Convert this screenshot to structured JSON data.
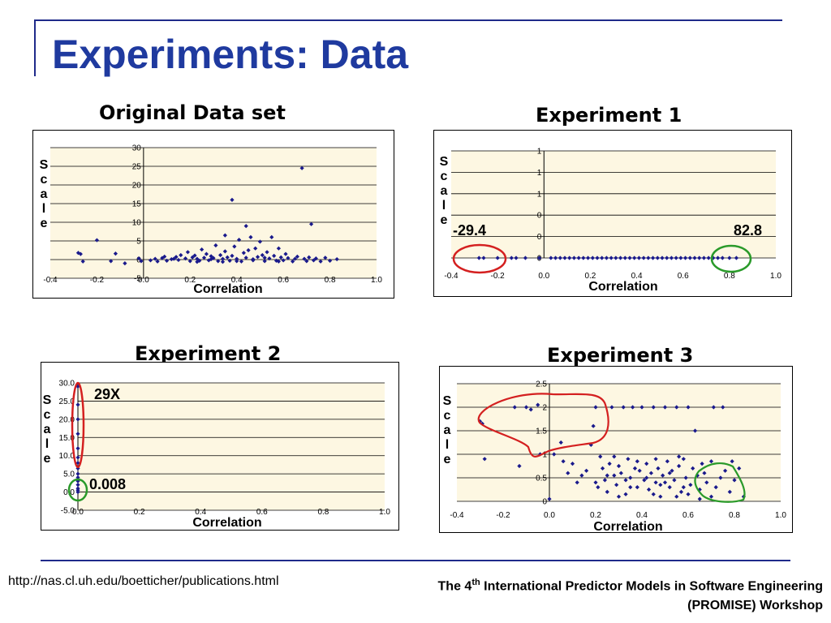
{
  "slide": {
    "title": "Experiments: Data",
    "footer_url": "http://nas.cl.uh.edu/boetticher/publications.html",
    "footer_workshop_pre": "The 4",
    "footer_workshop_sup": "th",
    "footer_workshop_post": " International Predictor Models in Software Engineering (PROMISE) Workshop"
  },
  "chart_data": [
    {
      "type": "scatter",
      "title": "Original Data set",
      "xlabel": "Correlation",
      "ylabel": "Scale",
      "xlim": [
        -0.4,
        1.0
      ],
      "ylim": [
        -5,
        30
      ],
      "x_ticks": [
        "-0.4",
        "-0.2",
        "0.0",
        "0.2",
        "0.4",
        "0.6",
        "0.8",
        "1.0"
      ],
      "y_ticks": [
        "30",
        "25",
        "20",
        "15",
        "10",
        "5",
        "0",
        "-5"
      ],
      "grid": true,
      "annotations": [],
      "series": [
        {
          "values": [
            [
              -0.28,
              1.8
            ],
            [
              -0.27,
              1.5
            ],
            [
              -0.26,
              -0.5
            ],
            [
              -0.2,
              5.2
            ],
            [
              -0.14,
              -0.4
            ],
            [
              -0.12,
              1.6
            ],
            [
              -0.08,
              -1
            ],
            [
              -0.02,
              0.3
            ],
            [
              -0.01,
              -0.4
            ],
            [
              0.03,
              -0.2
            ],
            [
              0.05,
              0.2
            ],
            [
              0.06,
              -0.5
            ],
            [
              0.08,
              0.4
            ],
            [
              0.09,
              0.8
            ],
            [
              0.1,
              -0.3
            ],
            [
              0.12,
              0.1
            ],
            [
              0.14,
              0.7
            ],
            [
              0.15,
              -0.1
            ],
            [
              0.16,
              1.2
            ],
            [
              0.18,
              0.3
            ],
            [
              0.19,
              2
            ],
            [
              0.2,
              -0.4
            ],
            [
              0.21,
              0.6
            ],
            [
              0.22,
              1.1
            ],
            [
              0.23,
              0.2
            ],
            [
              0.24,
              -0.3
            ],
            [
              0.25,
              2.7
            ],
            [
              0.26,
              0.5
            ],
            [
              0.27,
              1.5
            ],
            [
              0.28,
              -0.2
            ],
            [
              0.29,
              0.9
            ],
            [
              0.3,
              0.4
            ],
            [
              0.31,
              3.8
            ],
            [
              0.32,
              -0.4
            ],
            [
              0.33,
              1.2
            ],
            [
              0.34,
              0.2
            ],
            [
              0.35,
              6.5
            ],
            [
              0.35,
              2.2
            ],
            [
              0.36,
              0.6
            ],
            [
              0.37,
              -0.3
            ],
            [
              0.38,
              16
            ],
            [
              0.38,
              1
            ],
            [
              0.39,
              3.5
            ],
            [
              0.4,
              0.2
            ],
            [
              0.41,
              5.3
            ],
            [
              0.42,
              -0.5
            ],
            [
              0.43,
              1.8
            ],
            [
              0.44,
              9
            ],
            [
              0.44,
              0.5
            ],
            [
              0.45,
              2.5
            ],
            [
              0.46,
              6
            ],
            [
              0.47,
              -0.2
            ],
            [
              0.48,
              3
            ],
            [
              0.49,
              0.7
            ],
            [
              0.5,
              4.8
            ],
            [
              0.51,
              1.2
            ],
            [
              0.52,
              -0.4
            ],
            [
              0.53,
              2
            ],
            [
              0.54,
              0.3
            ],
            [
              0.55,
              6
            ],
            [
              0.56,
              1
            ],
            [
              0.57,
              -0.3
            ],
            [
              0.58,
              3
            ],
            [
              0.59,
              0.6
            ],
            [
              0.6,
              -0.2
            ],
            [
              0.61,
              1.5
            ],
            [
              0.62,
              0.4
            ],
            [
              0.64,
              -0.5
            ],
            [
              0.66,
              0.8
            ],
            [
              0.68,
              24.5
            ],
            [
              0.69,
              0.2
            ],
            [
              0.7,
              -0.4
            ],
            [
              0.71,
              0.6
            ],
            [
              0.72,
              9.5
            ],
            [
              0.73,
              -0.2
            ],
            [
              0.74,
              0.3
            ],
            [
              0.76,
              -0.5
            ],
            [
              0.78,
              0.5
            ],
            [
              0.8,
              -0.3
            ],
            [
              0.83,
              0.1
            ],
            [
              0.13,
              0.2
            ],
            [
              0.23,
              -0.6
            ],
            [
              0.29,
              0.1
            ],
            [
              0.4,
              -0.4
            ],
            [
              0.47,
              0.1
            ],
            [
              0.58,
              -0.5
            ],
            [
              0.65,
              0.2
            ],
            [
              0.34,
              -0.6
            ],
            [
              0.52,
              0.5
            ]
          ]
        }
      ]
    },
    {
      "type": "scatter",
      "title": "Experiment 1",
      "xlabel": "Correlation",
      "ylabel": "Scale",
      "xlim": [
        -0.4,
        1.0
      ],
      "ylim": [
        0,
        5
      ],
      "x_ticks": [
        "-0.4",
        "-0.2",
        "0.0",
        "0.2",
        "0.4",
        "0.6",
        "0.8",
        "1.0"
      ],
      "y_ticks": [
        "1",
        "1",
        "1",
        "0",
        "0",
        "0"
      ],
      "grid": true,
      "annotations": [
        "-29.4",
        "82.8"
      ],
      "series": [
        {
          "values": [
            [
              -0.28,
              0
            ],
            [
              -0.26,
              0
            ],
            [
              -0.2,
              0
            ],
            [
              -0.14,
              0
            ],
            [
              -0.12,
              0
            ],
            [
              -0.08,
              0
            ],
            [
              -0.02,
              0
            ],
            [
              0.03,
              0
            ],
            [
              0.05,
              0
            ],
            [
              0.07,
              0
            ],
            [
              0.09,
              0
            ],
            [
              0.11,
              0
            ],
            [
              0.13,
              0
            ],
            [
              0.15,
              0
            ],
            [
              0.17,
              0
            ],
            [
              0.19,
              0
            ],
            [
              0.21,
              0
            ],
            [
              0.23,
              0
            ],
            [
              0.25,
              0
            ],
            [
              0.27,
              0
            ],
            [
              0.29,
              0
            ],
            [
              0.31,
              0
            ],
            [
              0.33,
              0
            ],
            [
              0.35,
              0
            ],
            [
              0.37,
              0
            ],
            [
              0.39,
              0
            ],
            [
              0.41,
              0
            ],
            [
              0.43,
              0
            ],
            [
              0.45,
              0
            ],
            [
              0.47,
              0
            ],
            [
              0.49,
              0
            ],
            [
              0.51,
              0
            ],
            [
              0.53,
              0
            ],
            [
              0.55,
              0
            ],
            [
              0.57,
              0
            ],
            [
              0.59,
              0
            ],
            [
              0.61,
              0
            ],
            [
              0.63,
              0
            ],
            [
              0.65,
              0
            ],
            [
              0.67,
              0
            ],
            [
              0.69,
              0
            ],
            [
              0.71,
              0
            ],
            [
              0.73,
              0
            ],
            [
              0.75,
              0
            ],
            [
              0.77,
              0
            ],
            [
              0.8,
              0
            ],
            [
              0.83,
              0
            ]
          ]
        }
      ]
    },
    {
      "type": "scatter",
      "title": "Experiment 2",
      "xlabel": "Correlation",
      "ylabel": "Scale",
      "xlim": [
        0.0,
        1.0
      ],
      "ylim": [
        -5,
        30
      ],
      "x_ticks": [
        "0.0",
        "0.2",
        "0.4",
        "0.6",
        "0.8",
        "1.0"
      ],
      "y_ticks": [
        "30.0",
        "25.0",
        "20.0",
        "15.0",
        "10.0",
        "5.0",
        "0.0",
        "-5.0"
      ],
      "grid": true,
      "annotations": [
        "29X",
        "0.008"
      ],
      "series": [
        {
          "values": [
            [
              0.0,
              29
            ],
            [
              0.0,
              24
            ],
            [
              0.0,
              20
            ],
            [
              0.0,
              16
            ],
            [
              0.0,
              12
            ],
            [
              0.0,
              9.5
            ],
            [
              0.0,
              8
            ],
            [
              0.0,
              6.5
            ],
            [
              0.0,
              5
            ],
            [
              0.0,
              4
            ],
            [
              0.0,
              3
            ],
            [
              0.0,
              2
            ],
            [
              0.0,
              1
            ],
            [
              0.0,
              0.5
            ],
            [
              0.0,
              0
            ]
          ]
        }
      ]
    },
    {
      "type": "scatter",
      "title": "Experiment 3",
      "xlabel": "Correlation",
      "ylabel": "Scale",
      "xlim": [
        -0.4,
        1.0
      ],
      "ylim": [
        0,
        2.5
      ],
      "x_ticks": [
        "-0.4",
        "-0.2",
        "0.0",
        "0.2",
        "0.4",
        "0.6",
        "0.8",
        "1.0"
      ],
      "y_ticks": [
        "2.5",
        "2",
        "1.5",
        "1",
        "0.5",
        "0"
      ],
      "grid": true,
      "annotations": [],
      "series": [
        {
          "values": [
            [
              -0.3,
              1.7
            ],
            [
              -0.29,
              1.65
            ],
            [
              -0.28,
              0.9
            ],
            [
              -0.15,
              2
            ],
            [
              -0.1,
              2
            ],
            [
              -0.08,
              1.95
            ],
            [
              -0.05,
              2.05
            ],
            [
              -0.13,
              0.75
            ],
            [
              -0.04,
              1
            ],
            [
              0.0,
              0.05
            ],
            [
              0.02,
              1
            ],
            [
              0.05,
              1.25
            ],
            [
              0.06,
              0.85
            ],
            [
              0.08,
              0.6
            ],
            [
              0.1,
              0.8
            ],
            [
              0.12,
              0.4
            ],
            [
              0.14,
              0.55
            ],
            [
              0.16,
              0.65
            ],
            [
              0.18,
              1.2
            ],
            [
              0.19,
              1.6
            ],
            [
              0.2,
              2
            ],
            [
              0.21,
              0.3
            ],
            [
              0.22,
              0.95
            ],
            [
              0.23,
              0.7
            ],
            [
              0.24,
              0.45
            ],
            [
              0.25,
              0.2
            ],
            [
              0.26,
              0.8
            ],
            [
              0.27,
              2
            ],
            [
              0.28,
              0.55
            ],
            [
              0.29,
              0.35
            ],
            [
              0.3,
              0.75
            ],
            [
              0.31,
              0.6
            ],
            [
              0.32,
              2
            ],
            [
              0.33,
              0.15
            ],
            [
              0.34,
              0.9
            ],
            [
              0.35,
              0.5
            ],
            [
              0.36,
              2
            ],
            [
              0.37,
              0.7
            ],
            [
              0.38,
              0.3
            ],
            [
              0.39,
              0.65
            ],
            [
              0.4,
              2
            ],
            [
              0.41,
              0.45
            ],
            [
              0.42,
              0.8
            ],
            [
              0.43,
              0.25
            ],
            [
              0.44,
              0.6
            ],
            [
              0.45,
              2
            ],
            [
              0.46,
              0.4
            ],
            [
              0.47,
              0.7
            ],
            [
              0.48,
              0.1
            ],
            [
              0.49,
              0.55
            ],
            [
              0.5,
              2
            ],
            [
              0.51,
              0.85
            ],
            [
              0.52,
              0.3
            ],
            [
              0.53,
              0.65
            ],
            [
              0.54,
              0.45
            ],
            [
              0.55,
              2
            ],
            [
              0.56,
              0.75
            ],
            [
              0.57,
              0.2
            ],
            [
              0.58,
              0.9
            ],
            [
              0.59,
              0.5
            ],
            [
              0.6,
              2
            ],
            [
              0.61,
              0.35
            ],
            [
              0.62,
              0.7
            ],
            [
              0.63,
              1.5
            ],
            [
              0.64,
              0.55
            ],
            [
              0.65,
              0.25
            ],
            [
              0.66,
              0.8
            ],
            [
              0.67,
              0.6
            ],
            [
              0.68,
              0.4
            ],
            [
              0.7,
              0.85
            ],
            [
              0.71,
              2
            ],
            [
              0.72,
              0.3
            ],
            [
              0.74,
              0.5
            ],
            [
              0.75,
              2
            ],
            [
              0.76,
              0.65
            ],
            [
              0.78,
              0.2
            ],
            [
              0.79,
              0.85
            ],
            [
              0.8,
              0.45
            ],
            [
              0.82,
              0.7
            ],
            [
              0.84,
              0.1
            ],
            [
              0.2,
              0.4
            ],
            [
              0.3,
              0.1
            ],
            [
              0.35,
              0.3
            ],
            [
              0.45,
              0.15
            ],
            [
              0.5,
              0.4
            ],
            [
              0.55,
              0.1
            ],
            [
              0.6,
              0.15
            ],
            [
              0.65,
              0.05
            ],
            [
              0.7,
              0.1
            ],
            [
              0.25,
              0.55
            ],
            [
              0.33,
              0.45
            ],
            [
              0.42,
              0.5
            ],
            [
              0.48,
              0.35
            ],
            [
              0.52,
              0.6
            ],
            [
              0.58,
              0.3
            ],
            [
              0.28,
              0.95
            ],
            [
              0.38,
              0.85
            ],
            [
              0.46,
              0.9
            ],
            [
              0.56,
              0.95
            ]
          ]
        }
      ]
    }
  ]
}
